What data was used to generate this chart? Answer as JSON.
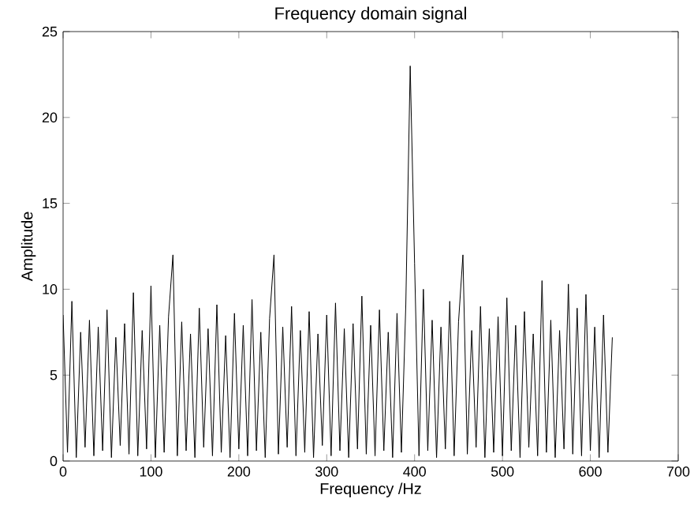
{
  "chart_data": {
    "type": "line",
    "title": "Frequency domain signal",
    "xlabel": "Frequency /Hz",
    "ylabel": "Amplitude",
    "x": [
      0,
      5,
      10,
      15,
      20,
      25,
      30,
      35,
      40,
      45,
      50,
      55,
      60,
      65,
      70,
      75,
      80,
      85,
      90,
      95,
      100,
      105,
      110,
      115,
      120,
      125,
      130,
      135,
      140,
      145,
      150,
      155,
      160,
      165,
      170,
      175,
      180,
      185,
      190,
      195,
      200,
      205,
      210,
      215,
      220,
      225,
      230,
      235,
      240,
      245,
      250,
      255,
      260,
      265,
      270,
      275,
      280,
      285,
      290,
      295,
      300,
      305,
      310,
      315,
      320,
      325,
      330,
      335,
      340,
      345,
      350,
      355,
      360,
      365,
      370,
      375,
      380,
      385,
      390,
      395,
      400,
      405,
      410,
      415,
      420,
      425,
      430,
      435,
      440,
      445,
      450,
      455,
      460,
      465,
      470,
      475,
      480,
      485,
      490,
      495,
      500,
      505,
      510,
      515,
      520,
      525,
      530,
      535,
      540,
      545,
      550,
      555,
      560,
      565,
      570,
      575,
      580,
      585,
      590,
      595,
      600,
      605,
      610,
      615,
      620,
      625
    ],
    "values": [
      8.5,
      0.5,
      9.3,
      0.2,
      7.5,
      0.8,
      8.2,
      0.3,
      7.8,
      0.6,
      8.8,
      0.2,
      7.2,
      0.9,
      8.0,
      0.4,
      9.8,
      0.3,
      7.6,
      0.7,
      10.2,
      0.2,
      7.9,
      0.5,
      8.4,
      12.0,
      0.3,
      8.1,
      0.6,
      7.4,
      0.2,
      8.9,
      0.8,
      7.7,
      0.3,
      9.1,
      0.5,
      7.3,
      0.2,
      8.6,
      0.7,
      7.9,
      0.3,
      9.4,
      0.6,
      7.5,
      0.2,
      8.3,
      12.0,
      0.4,
      7.8,
      0.8,
      9.0,
      0.3,
      7.6,
      0.5,
      8.7,
      0.2,
      7.4,
      0.9,
      8.5,
      0.3,
      9.2,
      0.6,
      7.7,
      0.2,
      8.0,
      0.7,
      9.6,
      0.4,
      7.9,
      0.3,
      8.8,
      0.6,
      7.5,
      0.2,
      8.6,
      0.5,
      9.1,
      23.0,
      11.5,
      0.3,
      10.0,
      0.6,
      8.2,
      0.2,
      7.8,
      0.7,
      9.3,
      0.3,
      8.1,
      12.0,
      0.4,
      7.6,
      0.8,
      9.0,
      0.2,
      7.7,
      0.5,
      8.4,
      0.3,
      9.5,
      0.6,
      7.9,
      0.2,
      8.7,
      0.8,
      7.4,
      0.3,
      10.5,
      0.5,
      8.2,
      0.2,
      7.6,
      0.7,
      10.3,
      0.4,
      8.9,
      0.3,
      9.7,
      0.6,
      7.8,
      0.2,
      8.5,
      0.5,
      7.2
    ],
    "color": "#000000",
    "xlim": [
      0,
      700
    ],
    "xticks": [
      0,
      100,
      200,
      300,
      400,
      500,
      600,
      700
    ],
    "ylim": [
      0,
      25
    ],
    "yticks": [
      0,
      5,
      10,
      15,
      20,
      25
    ]
  }
}
